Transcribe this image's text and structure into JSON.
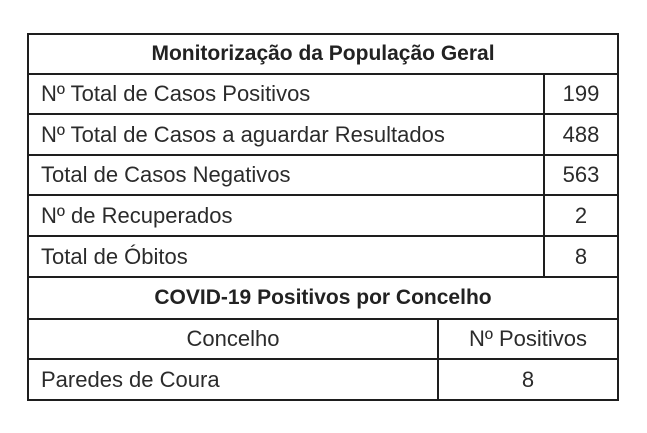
{
  "section1": {
    "title": "Monitorização da População Geral",
    "rows": [
      {
        "label": "Nº Total de Casos Positivos",
        "value": "199"
      },
      {
        "label": "Nº Total de Casos a aguardar Resultados",
        "value": "488"
      },
      {
        "label": "Total de Casos Negativos",
        "value": "563"
      },
      {
        "label": "Nº de Recuperados",
        "value": "2"
      },
      {
        "label": "Total de Óbitos",
        "value": "8"
      }
    ]
  },
  "section2": {
    "title": "COVID-19 Positivos por Concelho",
    "headers": [
      "Concelho",
      "Nº Positivos"
    ],
    "rows": [
      {
        "concelho": "Paredes de Coura",
        "positivos": "8"
      }
    ]
  }
}
